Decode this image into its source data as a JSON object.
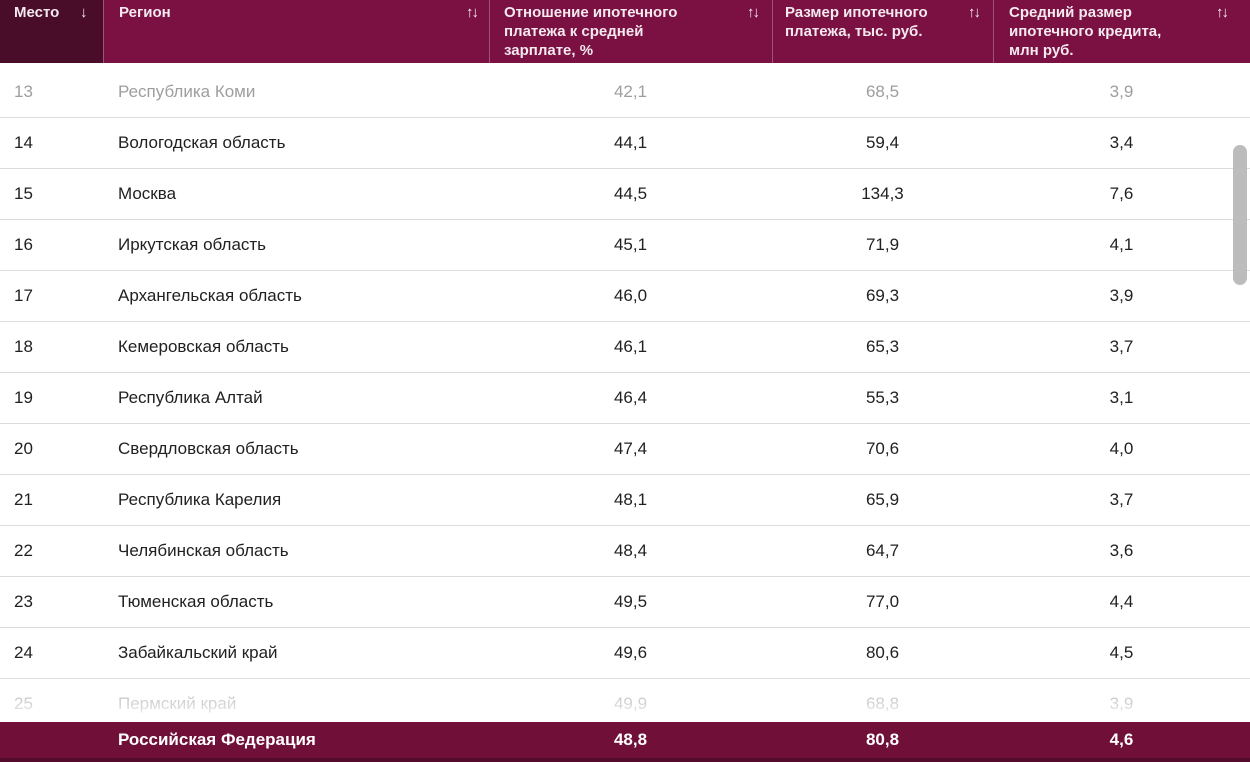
{
  "table": {
    "columns": [
      {
        "label": "Место",
        "sort_icon": "↓"
      },
      {
        "label": "Регион",
        "sort_icon": "↑↓"
      },
      {
        "label": "Отношение ипотечного платежа к средней зарплате, %",
        "sort_icon": "↑↓"
      },
      {
        "label": "Размер ипотечного платежа, тыс. руб.",
        "sort_icon": "↑↓"
      },
      {
        "label": "Средний размер ипотечного кредита, млн руб.",
        "sort_icon": "↑↓"
      }
    ],
    "rows": [
      {
        "rank": "13",
        "region": "Республика Коми",
        "payment_to_salary_pct": "42,1",
        "payment_thousand_rub": "68,5",
        "loan_million_rub": "3,9",
        "faded": true
      },
      {
        "rank": "14",
        "region": "Вологодская область",
        "payment_to_salary_pct": "44,1",
        "payment_thousand_rub": "59,4",
        "loan_million_rub": "3,4",
        "faded": false
      },
      {
        "rank": "15",
        "region": "Москва",
        "payment_to_salary_pct": "44,5",
        "payment_thousand_rub": "134,3",
        "loan_million_rub": "7,6",
        "faded": false
      },
      {
        "rank": "16",
        "region": "Иркутская область",
        "payment_to_salary_pct": "45,1",
        "payment_thousand_rub": "71,9",
        "loan_million_rub": "4,1",
        "faded": false
      },
      {
        "rank": "17",
        "region": "Архангельская область",
        "payment_to_salary_pct": "46,0",
        "payment_thousand_rub": "69,3",
        "loan_million_rub": "3,9",
        "faded": false
      },
      {
        "rank": "18",
        "region": "Кемеровская область",
        "payment_to_salary_pct": "46,1",
        "payment_thousand_rub": "65,3",
        "loan_million_rub": "3,7",
        "faded": false
      },
      {
        "rank": "19",
        "region": "Республика Алтай",
        "payment_to_salary_pct": "46,4",
        "payment_thousand_rub": "55,3",
        "loan_million_rub": "3,1",
        "faded": false
      },
      {
        "rank": "20",
        "region": "Свердловская область",
        "payment_to_salary_pct": "47,4",
        "payment_thousand_rub": "70,6",
        "loan_million_rub": "4,0",
        "faded": false
      },
      {
        "rank": "21",
        "region": "Республика Карелия",
        "payment_to_salary_pct": "48,1",
        "payment_thousand_rub": "65,9",
        "loan_million_rub": "3,7",
        "faded": false
      },
      {
        "rank": "22",
        "region": "Челябинская область",
        "payment_to_salary_pct": "48,4",
        "payment_thousand_rub": "64,7",
        "loan_million_rub": "3,6",
        "faded": false
      },
      {
        "rank": "23",
        "region": "Тюменская область",
        "payment_to_salary_pct": "49,5",
        "payment_thousand_rub": "77,0",
        "loan_million_rub": "4,4",
        "faded": false
      },
      {
        "rank": "24",
        "region": "Забайкальский край",
        "payment_to_salary_pct": "49,6",
        "payment_thousand_rub": "80,6",
        "loan_million_rub": "4,5",
        "faded": false
      },
      {
        "rank": "25",
        "region": "Пермский край",
        "payment_to_salary_pct": "49,9",
        "payment_thousand_rub": "68,8",
        "loan_million_rub": "3,9",
        "faded": true
      }
    ],
    "summary": {
      "region": "Российская Федерация",
      "payment_to_salary_pct": "48,8",
      "payment_thousand_rub": "80,8",
      "loan_million_rub": "4,6"
    }
  },
  "colors": {
    "header_bg": "#7a1142",
    "header_active_column_bg": "#4a0d29",
    "header_text": "#f4e9ef",
    "summary_bg": "#701038",
    "summary_bottom_edge": "#540b2c",
    "row_divider": "#dcdcdc",
    "body_text": "#212121",
    "faded_text": "#9e9e9e",
    "scrollbar_thumb": "#bcbcbc"
  }
}
